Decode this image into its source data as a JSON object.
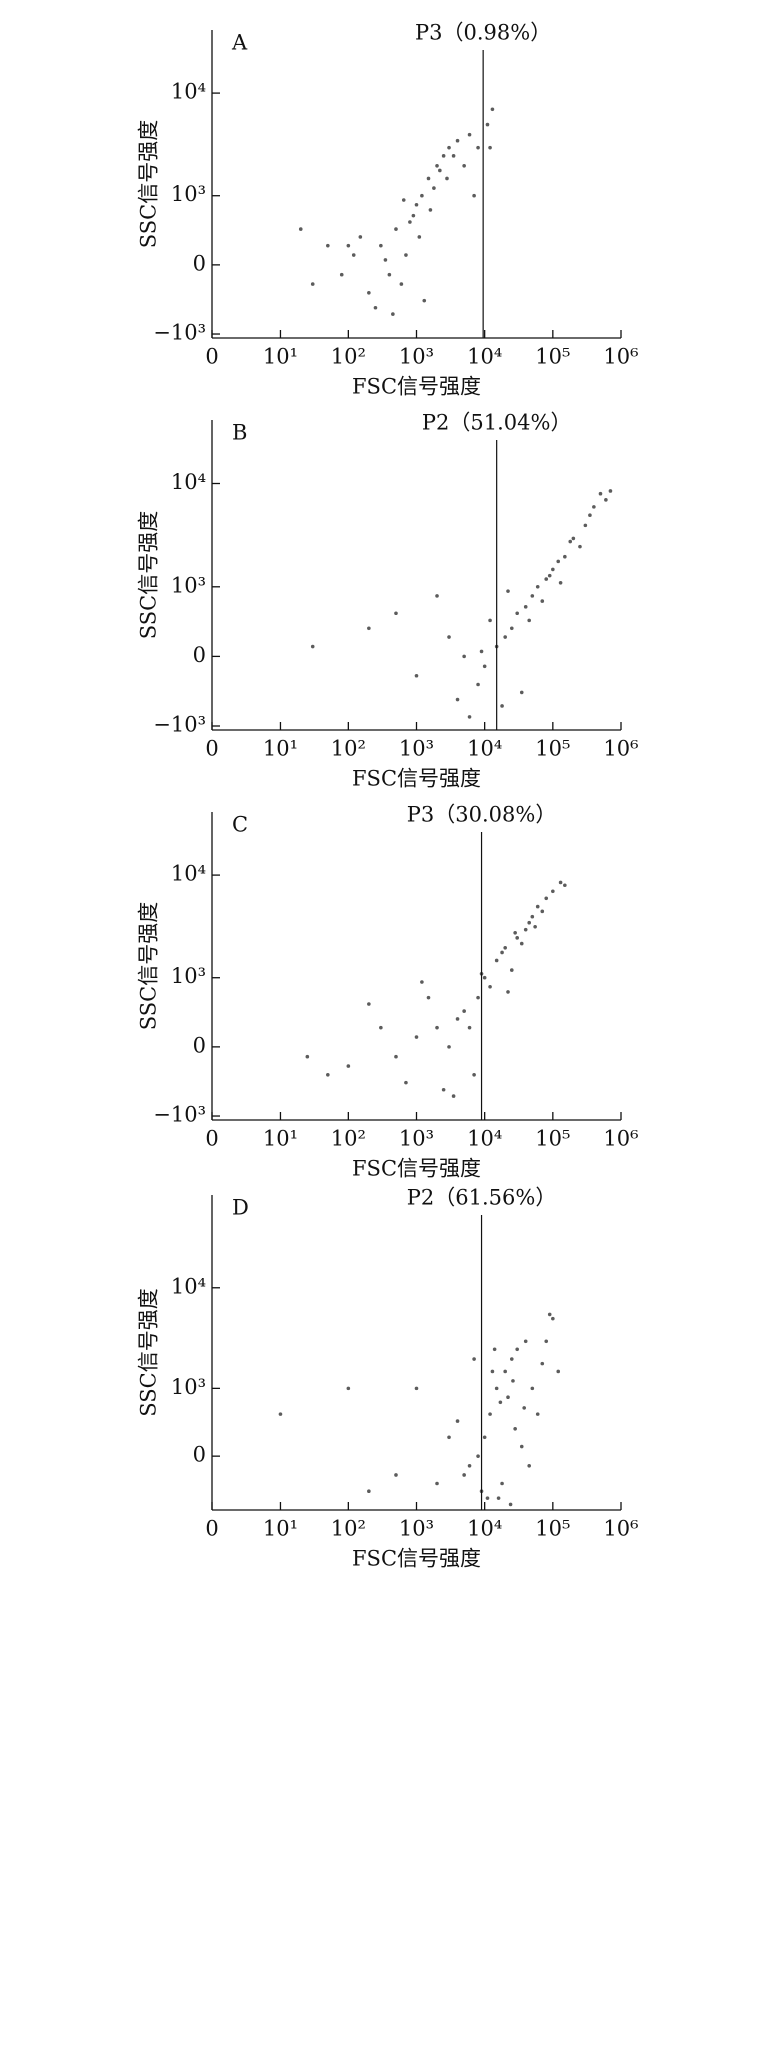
{
  "chart_data": [
    {
      "type": "scatter",
      "panel": "A",
      "gate_label": "P3（0.98%）",
      "gate_x": 9500,
      "xlabel": "FSC信号强度",
      "ylabel": "SSC信号强度",
      "color": "#333333",
      "xlim": [
        0,
        1000000
      ],
      "xticks": [
        0,
        {
          "value": 10,
          "label": "10¹"
        },
        {
          "value": 100,
          "label": "10²"
        },
        {
          "value": 1000,
          "label": "10³"
        },
        {
          "value": 10000,
          "label": "10⁴"
        },
        {
          "value": 100000,
          "label": "10⁵"
        },
        {
          "value": 1000000,
          "label": "10⁶"
        }
      ],
      "ylim": [
        -1100,
        40000
      ],
      "yticks": [
        {
          "value": -1000,
          "label": "−10³"
        },
        0,
        {
          "value": 1000,
          "label": "10³"
        },
        {
          "value": 10000,
          "label": "10⁴"
        }
      ],
      "x": [
        300,
        500,
        800,
        1000,
        1200,
        1500,
        2000,
        2500,
        3000,
        700,
        400,
        200,
        150,
        100,
        600,
        900,
        1800,
        2200,
        3500,
        4000,
        5000,
        6000,
        1300,
        350,
        250,
        80,
        50,
        20,
        8000,
        11000,
        12000,
        13000,
        1100,
        1600,
        2800,
        450,
        650,
        7000,
        120,
        30
      ],
      "y": [
        200,
        400,
        500,
        800,
        1000,
        1500,
        2000,
        2500,
        3000,
        100,
        -100,
        -300,
        300,
        200,
        -200,
        600,
        1200,
        1800,
        2500,
        3500,
        2000,
        4000,
        -400,
        50,
        -500,
        -100,
        200,
        400,
        3000,
        5000,
        3000,
        7000,
        300,
        700,
        1500,
        -600,
        900,
        1000,
        100,
        -200
      ]
    },
    {
      "type": "scatter",
      "panel": "B",
      "gate_label": "P2（51.04%）",
      "gate_x": 15000,
      "xlabel": "FSC信号强度",
      "ylabel": "SSC信号强度",
      "color": "#333333",
      "xlim": [
        0,
        1000000
      ],
      "xticks": [
        0,
        {
          "value": 10,
          "label": "10¹"
        },
        {
          "value": 100,
          "label": "10²"
        },
        {
          "value": 1000,
          "label": "10³"
        },
        {
          "value": 10000,
          "label": "10⁴"
        },
        {
          "value": 100000,
          "label": "10⁵"
        },
        {
          "value": 1000000,
          "label": "10⁶"
        }
      ],
      "ylim": [
        -1100,
        40000
      ],
      "yticks": [
        {
          "value": -1000,
          "label": "−10³"
        },
        0,
        {
          "value": 1000,
          "label": "10³"
        },
        {
          "value": 10000,
          "label": "10⁴"
        }
      ],
      "x": [
        20000,
        30000,
        50000,
        80000,
        100000,
        150000,
        200000,
        300000,
        400000,
        500000,
        60000,
        40000,
        25000,
        15000,
        10000,
        8000,
        5000,
        3000,
        1000,
        500,
        200,
        30,
        70000,
        120000,
        250000,
        35000,
        18000,
        12000,
        6000,
        2000,
        90000,
        180000,
        600000,
        700000,
        45000,
        22000,
        9000,
        4000,
        130000,
        350000
      ],
      "y": [
        200,
        500,
        800,
        1200,
        1500,
        2000,
        3000,
        4000,
        6000,
        8000,
        1000,
        600,
        300,
        100,
        -100,
        -300,
        0,
        200,
        -200,
        500,
        300,
        100,
        700,
        1800,
        2500,
        -400,
        -600,
        400,
        -800,
        800,
        1300,
        2800,
        7000,
        8500,
        400,
        900,
        50,
        -500,
        1100,
        5000
      ]
    },
    {
      "type": "scatter",
      "panel": "C",
      "gate_label": "P3（30.08%）",
      "gate_x": 9000,
      "xlabel": "FSC信号强度",
      "ylabel": "SSC信号强度",
      "color": "#333333",
      "xlim": [
        0,
        1000000
      ],
      "xticks": [
        0,
        {
          "value": 10,
          "label": "10¹"
        },
        {
          "value": 100,
          "label": "10²"
        },
        {
          "value": 1000,
          "label": "10³"
        },
        {
          "value": 10000,
          "label": "10⁴"
        },
        {
          "value": 100000,
          "label": "10⁵"
        },
        {
          "value": 1000000,
          "label": "10⁶"
        }
      ],
      "ylim": [
        -1100,
        40000
      ],
      "yticks": [
        {
          "value": -1000,
          "label": "−10³"
        },
        0,
        {
          "value": 1000,
          "label": "10³"
        },
        {
          "value": 10000,
          "label": "10⁴"
        }
      ],
      "x": [
        1000,
        2000,
        3000,
        5000,
        8000,
        10000,
        15000,
        20000,
        30000,
        40000,
        50000,
        60000,
        80000,
        100000,
        150000,
        500,
        300,
        200,
        100,
        50,
        25,
        12000,
        25000,
        35000,
        45000,
        7000,
        4000,
        2500,
        1500,
        700,
        18000,
        22000,
        70000,
        9000,
        6000,
        3500,
        1200,
        28000,
        55000,
        130000
      ],
      "y": [
        100,
        200,
        0,
        400,
        600,
        1000,
        1500,
        2000,
        2500,
        3000,
        4000,
        5000,
        6000,
        7000,
        8000,
        -100,
        200,
        500,
        -200,
        -300,
        -100,
        800,
        1200,
        2200,
        3500,
        -300,
        300,
        -500,
        600,
        -400,
        1800,
        700,
        4500,
        1100,
        200,
        -600,
        900,
        2800,
        3200,
        8500
      ]
    },
    {
      "type": "scatter",
      "panel": "D",
      "gate_label": "P2（61.56%）",
      "gate_x": 9000,
      "xlabel": "FSC信号强度",
      "ylabel": "SSC信号强度",
      "color": "#333333",
      "xlim": [
        0,
        1000000
      ],
      "xticks": [
        0,
        {
          "value": 10,
          "label": "10¹"
        },
        {
          "value": 100,
          "label": "10²"
        },
        {
          "value": 1000,
          "label": "10³"
        },
        {
          "value": 10000,
          "label": "10⁴"
        },
        {
          "value": 100000,
          "label": "10⁵"
        },
        {
          "value": 1000000,
          "label": "10⁶"
        }
      ],
      "ylim": [
        -700,
        80000
      ],
      "yticks": [
        0,
        {
          "value": 1000,
          "label": "10³"
        },
        {
          "value": 10000,
          "label": "10⁴"
        }
      ],
      "x": [
        5000,
        8000,
        10000,
        12000,
        15000,
        20000,
        25000,
        30000,
        40000,
        50000,
        60000,
        80000,
        100000,
        120000,
        9000,
        11000,
        18000,
        22000,
        35000,
        45000,
        3000,
        2000,
        1000,
        500,
        200,
        100,
        10,
        7000,
        14000,
        28000,
        70000,
        16000,
        6000,
        4000,
        26000,
        38000,
        90000,
        13000,
        17000,
        24000
      ],
      "y": [
        -200,
        0,
        200,
        500,
        1000,
        1500,
        2000,
        2500,
        3000,
        1000,
        500,
        3000,
        5000,
        1500,
        -400,
        -500,
        -300,
        800,
        100,
        -100,
        200,
        -300,
        1000,
        -200,
        -400,
        1000,
        500,
        2000,
        2500,
        300,
        1800,
        -500,
        -100,
        400,
        1200,
        600,
        5500,
        1500,
        700,
        -600
      ]
    }
  ]
}
